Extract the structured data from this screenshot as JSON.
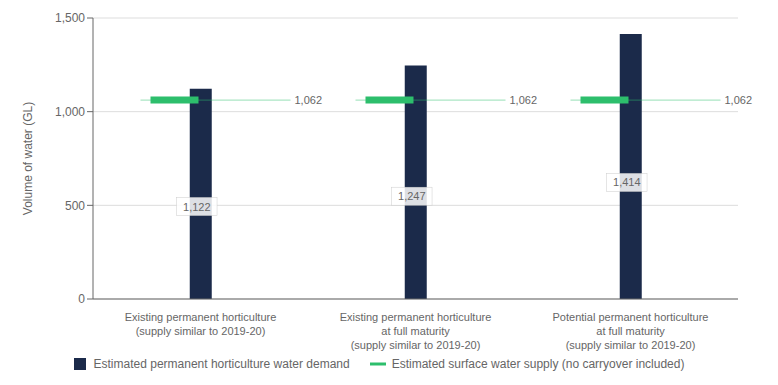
{
  "chart_data": {
    "type": "bar",
    "categories": [
      "Existing permanent horticulture\n(supply similar to 2019-20)",
      "Existing permanent horticulture\nat full maturity\n(supply similar to 2019-20)",
      "Potential permanent horticulture\nat full maturity\n(supply similar to 2019-20)"
    ],
    "ylabel": "Volume of water (GL)",
    "ylim": [
      0,
      1500
    ],
    "yticks": [
      0,
      500,
      {
        "value": 1000,
        "label": "1,000"
      },
      {
        "value": 1500,
        "label": "1,500"
      }
    ],
    "grid": true,
    "legend": "bottom",
    "data_labels": true,
    "series": [
      {
        "name": "Estimated permanent horticulture water demand",
        "type": "bar",
        "color": "#1b2a4a",
        "values": [
          1122,
          1247,
          1414
        ],
        "value_labels": [
          "1,122",
          "1,247",
          "1,414"
        ]
      },
      {
        "name": "Estimated surface water supply (no carryover included)",
        "type": "line",
        "color": "#2dbe6c",
        "values": [
          1062,
          1062,
          1062
        ],
        "value_labels": [
          "1,062",
          "1,062",
          "1,062"
        ]
      }
    ]
  }
}
